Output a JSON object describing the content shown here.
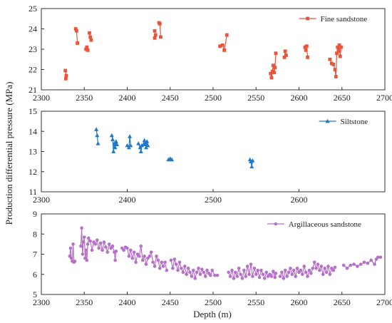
{
  "figure": {
    "ylabel": "Production differential pressure (MPa)",
    "xlabel": "Depth (m)"
  },
  "chart_data": [
    {
      "type": "line",
      "name": "Fine sandstone",
      "color": "#E8553A",
      "marker": "square",
      "xlim": [
        2300,
        2700
      ],
      "ylim": [
        21,
        25
      ],
      "xticks": [
        2300,
        2350,
        2400,
        2450,
        2500,
        2550,
        2600,
        2650,
        2700
      ],
      "yticks": [
        21,
        22,
        23,
        24,
        25
      ],
      "legend": "top-right",
      "segments": [
        [
          [
            2328,
            21.95
          ],
          [
            2329,
            21.7
          ],
          [
            2328.5,
            21.55
          ]
        ],
        [
          [
            2340,
            24.0
          ],
          [
            2341,
            23.9
          ],
          [
            2342,
            23.3
          ]
        ],
        [
          [
            2352,
            23.0
          ],
          [
            2353,
            23.1
          ],
          [
            2354,
            22.95
          ]
        ],
        [
          [
            2356,
            23.8
          ],
          [
            2357,
            23.6
          ],
          [
            2358,
            23.45
          ]
        ],
        [
          [
            2432,
            23.9
          ],
          [
            2433,
            23.7
          ],
          [
            2432,
            23.55
          ]
        ],
        [
          [
            2437,
            24.3
          ],
          [
            2438,
            24.25
          ],
          [
            2439,
            23.6
          ]
        ],
        [
          [
            2508,
            23.15
          ],
          [
            2511,
            23.2
          ],
          [
            2513,
            22.95
          ],
          [
            2516,
            23.7
          ]
        ],
        [
          [
            2567,
            21.8
          ],
          [
            2568,
            21.6
          ],
          [
            2569,
            21.9
          ],
          [
            2570,
            22.2
          ],
          [
            2571,
            21.85
          ],
          [
            2572,
            22.1
          ],
          [
            2573,
            22.8
          ]
        ],
        [
          [
            2583,
            22.6
          ],
          [
            2584,
            22.9
          ],
          [
            2585,
            22.7
          ]
        ],
        [
          [
            2607,
            23.1
          ],
          [
            2608,
            22.95
          ],
          [
            2609,
            23.15
          ],
          [
            2610,
            22.6
          ]
        ],
        [
          [
            2636,
            22.5
          ],
          [
            2638,
            22.3
          ],
          [
            2640,
            22.25
          ],
          [
            2642,
            22.0
          ],
          [
            2643,
            21.65
          ],
          [
            2644,
            22.8
          ],
          [
            2645,
            23.1
          ],
          [
            2646,
            22.9
          ],
          [
            2647,
            23.2
          ],
          [
            2648,
            22.65
          ],
          [
            2649,
            23.1
          ]
        ]
      ]
    },
    {
      "type": "line",
      "name": "Siltstone",
      "color": "#1F78C8",
      "marker": "triangle",
      "xlim": [
        2300,
        2700
      ],
      "ylim": [
        11,
        15
      ],
      "xticks": [
        2300,
        2400,
        2500,
        2600
      ],
      "yticks": [
        11,
        12,
        13,
        14,
        15
      ],
      "legend": "top-right",
      "segments": [
        [
          [
            2364,
            14.1
          ],
          [
            2365,
            13.8
          ],
          [
            2366,
            13.4
          ]
        ],
        [
          [
            2382,
            13.8
          ],
          [
            2383,
            13.6
          ],
          [
            2384,
            13.0
          ],
          [
            2385,
            13.4
          ],
          [
            2386,
            13.2
          ],
          [
            2387,
            13.5
          ],
          [
            2388,
            13.35
          ]
        ],
        [
          [
            2400,
            13.3
          ],
          [
            2402,
            13.2
          ],
          [
            2403,
            13.75
          ],
          [
            2404,
            13.3
          ]
        ],
        [
          [
            2413,
            13.4
          ],
          [
            2415,
            13.2
          ],
          [
            2416,
            13.0
          ],
          [
            2417,
            13.3
          ],
          [
            2419,
            13.35
          ],
          [
            2420,
            13.55
          ],
          [
            2421,
            13.4
          ],
          [
            2422,
            13.2
          ],
          [
            2423,
            13.5
          ],
          [
            2424,
            13.3
          ]
        ],
        [
          [
            2448,
            12.6
          ],
          [
            2450,
            12.65
          ],
          [
            2452,
            12.6
          ]
        ],
        [
          [
            2543,
            12.6
          ],
          [
            2544,
            12.5
          ],
          [
            2545,
            12.25
          ],
          [
            2546,
            12.55
          ]
        ]
      ]
    },
    {
      "type": "line",
      "name": "Argillaceous sandstone",
      "color": "#B770C9",
      "marker": "circle",
      "xlim": [
        2300,
        2700
      ],
      "ylim": [
        5,
        9
      ],
      "xticks": [
        2300,
        2350,
        2400,
        2450,
        2500,
        2550,
        2600,
        2650,
        2700
      ],
      "yticks": [
        5,
        6,
        7,
        8,
        9
      ],
      "legend": "top-right",
      "segments": [
        [
          [
            2333,
            6.9
          ],
          [
            2334,
            7.3
          ],
          [
            2335,
            6.8
          ],
          [
            2336,
            6.65
          ],
          [
            2337,
            7.5
          ],
          [
            2338,
            6.6
          ],
          [
            2339,
            6.65
          ]
        ],
        [
          [
            2346,
            7.4
          ],
          [
            2347,
            8.3
          ],
          [
            2348,
            7.0
          ],
          [
            2349,
            7.6
          ],
          [
            2350,
            7.85
          ],
          [
            2351,
            6.8
          ],
          [
            2352,
            7.2
          ],
          [
            2353,
            6.7
          ],
          [
            2354,
            7.5
          ],
          [
            2355,
            7.8
          ],
          [
            2357,
            7.65
          ],
          [
            2359,
            7.2
          ],
          [
            2361,
            7.6
          ],
          [
            2363,
            7.5
          ],
          [
            2365,
            7.7
          ],
          [
            2367,
            7.3
          ],
          [
            2369,
            7.55
          ],
          [
            2371,
            7.2
          ],
          [
            2373,
            7.6
          ],
          [
            2375,
            7.35
          ],
          [
            2377,
            7.1
          ],
          [
            2379,
            7.5
          ],
          [
            2381,
            7.3
          ],
          [
            2383,
            7.4
          ],
          [
            2385,
            7.1
          ],
          [
            2386,
            6.7
          ],
          [
            2387,
            7.15
          ]
        ],
        [
          [
            2394,
            7.3
          ],
          [
            2396,
            7.2
          ],
          [
            2398,
            7.35
          ],
          [
            2400,
            7.3
          ],
          [
            2402,
            6.9
          ],
          [
            2404,
            7.2
          ],
          [
            2406,
            6.8
          ],
          [
            2408,
            7.1
          ],
          [
            2410,
            6.6
          ],
          [
            2412,
            7.0
          ],
          [
            2414,
            6.9
          ],
          [
            2416,
            7.4
          ],
          [
            2418,
            6.7
          ],
          [
            2420,
            6.9
          ],
          [
            2422,
            6.5
          ],
          [
            2424,
            6.8
          ],
          [
            2426,
            6.9
          ],
          [
            2428,
            7.1
          ],
          [
            2430,
            6.6
          ],
          [
            2432,
            6.4
          ],
          [
            2434,
            6.9
          ],
          [
            2436,
            6.7
          ],
          [
            2438,
            6.3
          ],
          [
            2440,
            6.6
          ],
          [
            2442,
            6.4
          ],
          [
            2444,
            6.6
          ],
          [
            2446,
            6.2
          ]
        ],
        [
          [
            2451,
            6.7
          ],
          [
            2453,
            6.3
          ],
          [
            2455,
            6.75
          ],
          [
            2457,
            6.5
          ],
          [
            2459,
            6.2
          ],
          [
            2461,
            6.6
          ],
          [
            2463,
            6.3
          ],
          [
            2465,
            6.1
          ],
          [
            2467,
            6.4
          ],
          [
            2469,
            6.0
          ],
          [
            2471,
            6.3
          ],
          [
            2473,
            6.1
          ],
          [
            2475,
            5.9
          ],
          [
            2477,
            6.2
          ],
          [
            2479,
            5.8
          ],
          [
            2481,
            6.1
          ],
          [
            2483,
            6.3
          ],
          [
            2485,
            6.0
          ],
          [
            2487,
            6.25
          ],
          [
            2489,
            6.1
          ],
          [
            2491,
            5.9
          ],
          [
            2493,
            6.2
          ],
          [
            2495,
            6.05
          ],
          [
            2497,
            5.95
          ],
          [
            2499,
            6.2
          ],
          [
            2502,
            5.95
          ],
          [
            2505,
            5.95
          ]
        ],
        [
          [
            2518,
            6.1
          ],
          [
            2520,
            5.9
          ],
          [
            2522,
            6.2
          ],
          [
            2524,
            5.8
          ],
          [
            2526,
            6.1
          ],
          [
            2528,
            5.9
          ],
          [
            2530,
            6.3
          ],
          [
            2532,
            6.0
          ],
          [
            2534,
            5.8
          ],
          [
            2536,
            6.2
          ],
          [
            2538,
            5.9
          ],
          [
            2540,
            6.4
          ],
          [
            2542,
            6.0
          ],
          [
            2544,
            6.5
          ],
          [
            2546,
            5.9
          ],
          [
            2548,
            6.3
          ],
          [
            2550,
            6.0
          ],
          [
            2552,
            6.2
          ],
          [
            2554,
            5.85
          ],
          [
            2556,
            6.2
          ],
          [
            2558,
            6.0
          ],
          [
            2560,
            5.8
          ],
          [
            2562,
            6.1
          ],
          [
            2564,
            5.9
          ],
          [
            2566,
            6.0
          ],
          [
            2568,
            5.9
          ],
          [
            2570,
            6.15
          ],
          [
            2572,
            5.85
          ],
          [
            2573,
            6.05
          ]
        ],
        [
          [
            2578,
            5.9
          ],
          [
            2580,
            6.1
          ],
          [
            2582,
            5.8
          ],
          [
            2584,
            6.2
          ],
          [
            2586,
            5.9
          ],
          [
            2588,
            6.1
          ],
          [
            2590,
            6.3
          ],
          [
            2592,
            6.0
          ],
          [
            2594,
            6.2
          ],
          [
            2596,
            5.9
          ],
          [
            2598,
            6.3
          ],
          [
            2600,
            6.1
          ],
          [
            2602,
            6.2
          ],
          [
            2604,
            6.0
          ],
          [
            2606,
            6.4
          ],
          [
            2608,
            6.1
          ],
          [
            2610,
            5.9
          ],
          [
            2612,
            6.2
          ],
          [
            2614,
            6.05
          ],
          [
            2616,
            6.3
          ],
          [
            2618,
            6.6
          ],
          [
            2620,
            6.3
          ],
          [
            2622,
            6.5
          ],
          [
            2624,
            6.2
          ],
          [
            2626,
            6.4
          ],
          [
            2628,
            6.0
          ],
          [
            2630,
            6.3
          ],
          [
            2632,
            6.1
          ],
          [
            2634,
            6.4
          ],
          [
            2636,
            6.0
          ],
          [
            2638,
            6.3
          ],
          [
            2640,
            6.2
          ],
          [
            2642,
            6.35
          ]
        ],
        [
          [
            2652,
            6.45
          ],
          [
            2656,
            6.3
          ],
          [
            2660,
            6.45
          ],
          [
            2664,
            6.5
          ],
          [
            2668,
            6.4
          ],
          [
            2672,
            6.5
          ],
          [
            2676,
            6.6
          ],
          [
            2680,
            6.55
          ],
          [
            2684,
            6.7
          ],
          [
            2688,
            6.5
          ],
          [
            2690,
            6.75
          ],
          [
            2692,
            6.85
          ],
          [
            2695,
            6.85
          ]
        ]
      ]
    }
  ]
}
